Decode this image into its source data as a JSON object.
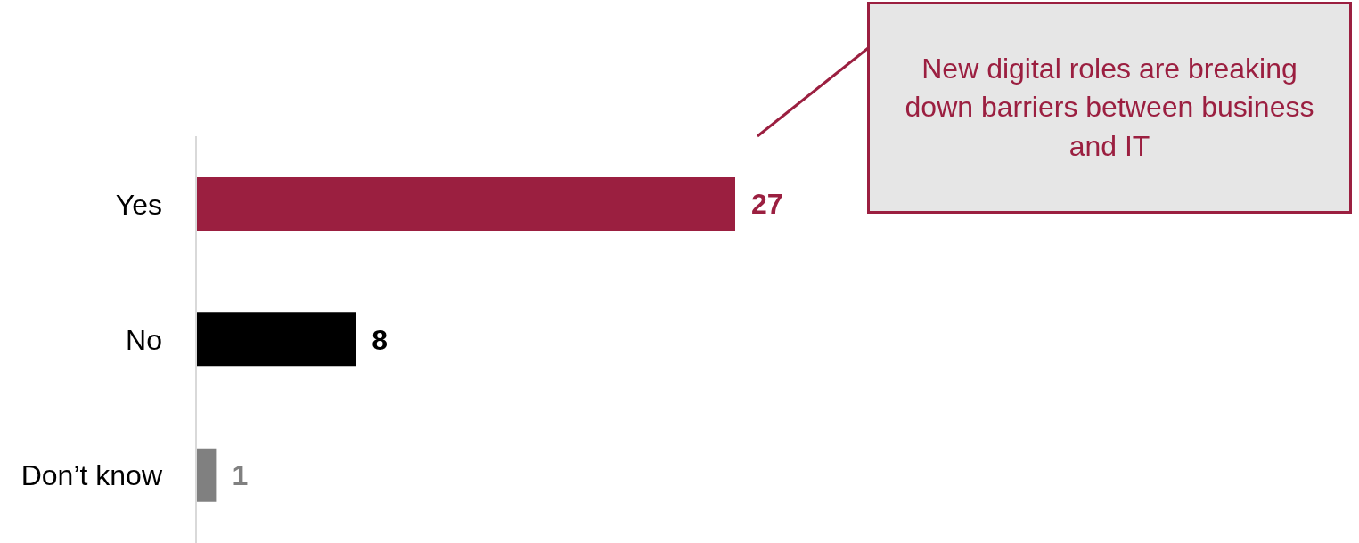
{
  "chart_data": {
    "type": "bar",
    "orientation": "horizontal",
    "categories": [
      "Yes",
      "No",
      "Don’t know"
    ],
    "values": [
      27,
      8,
      1
    ],
    "colors": [
      "#9b1f40",
      "#000000",
      "#808080"
    ],
    "data_labels": true,
    "annotations": [
      "New digital roles are breaking down barriers between business and IT"
    ]
  }
}
